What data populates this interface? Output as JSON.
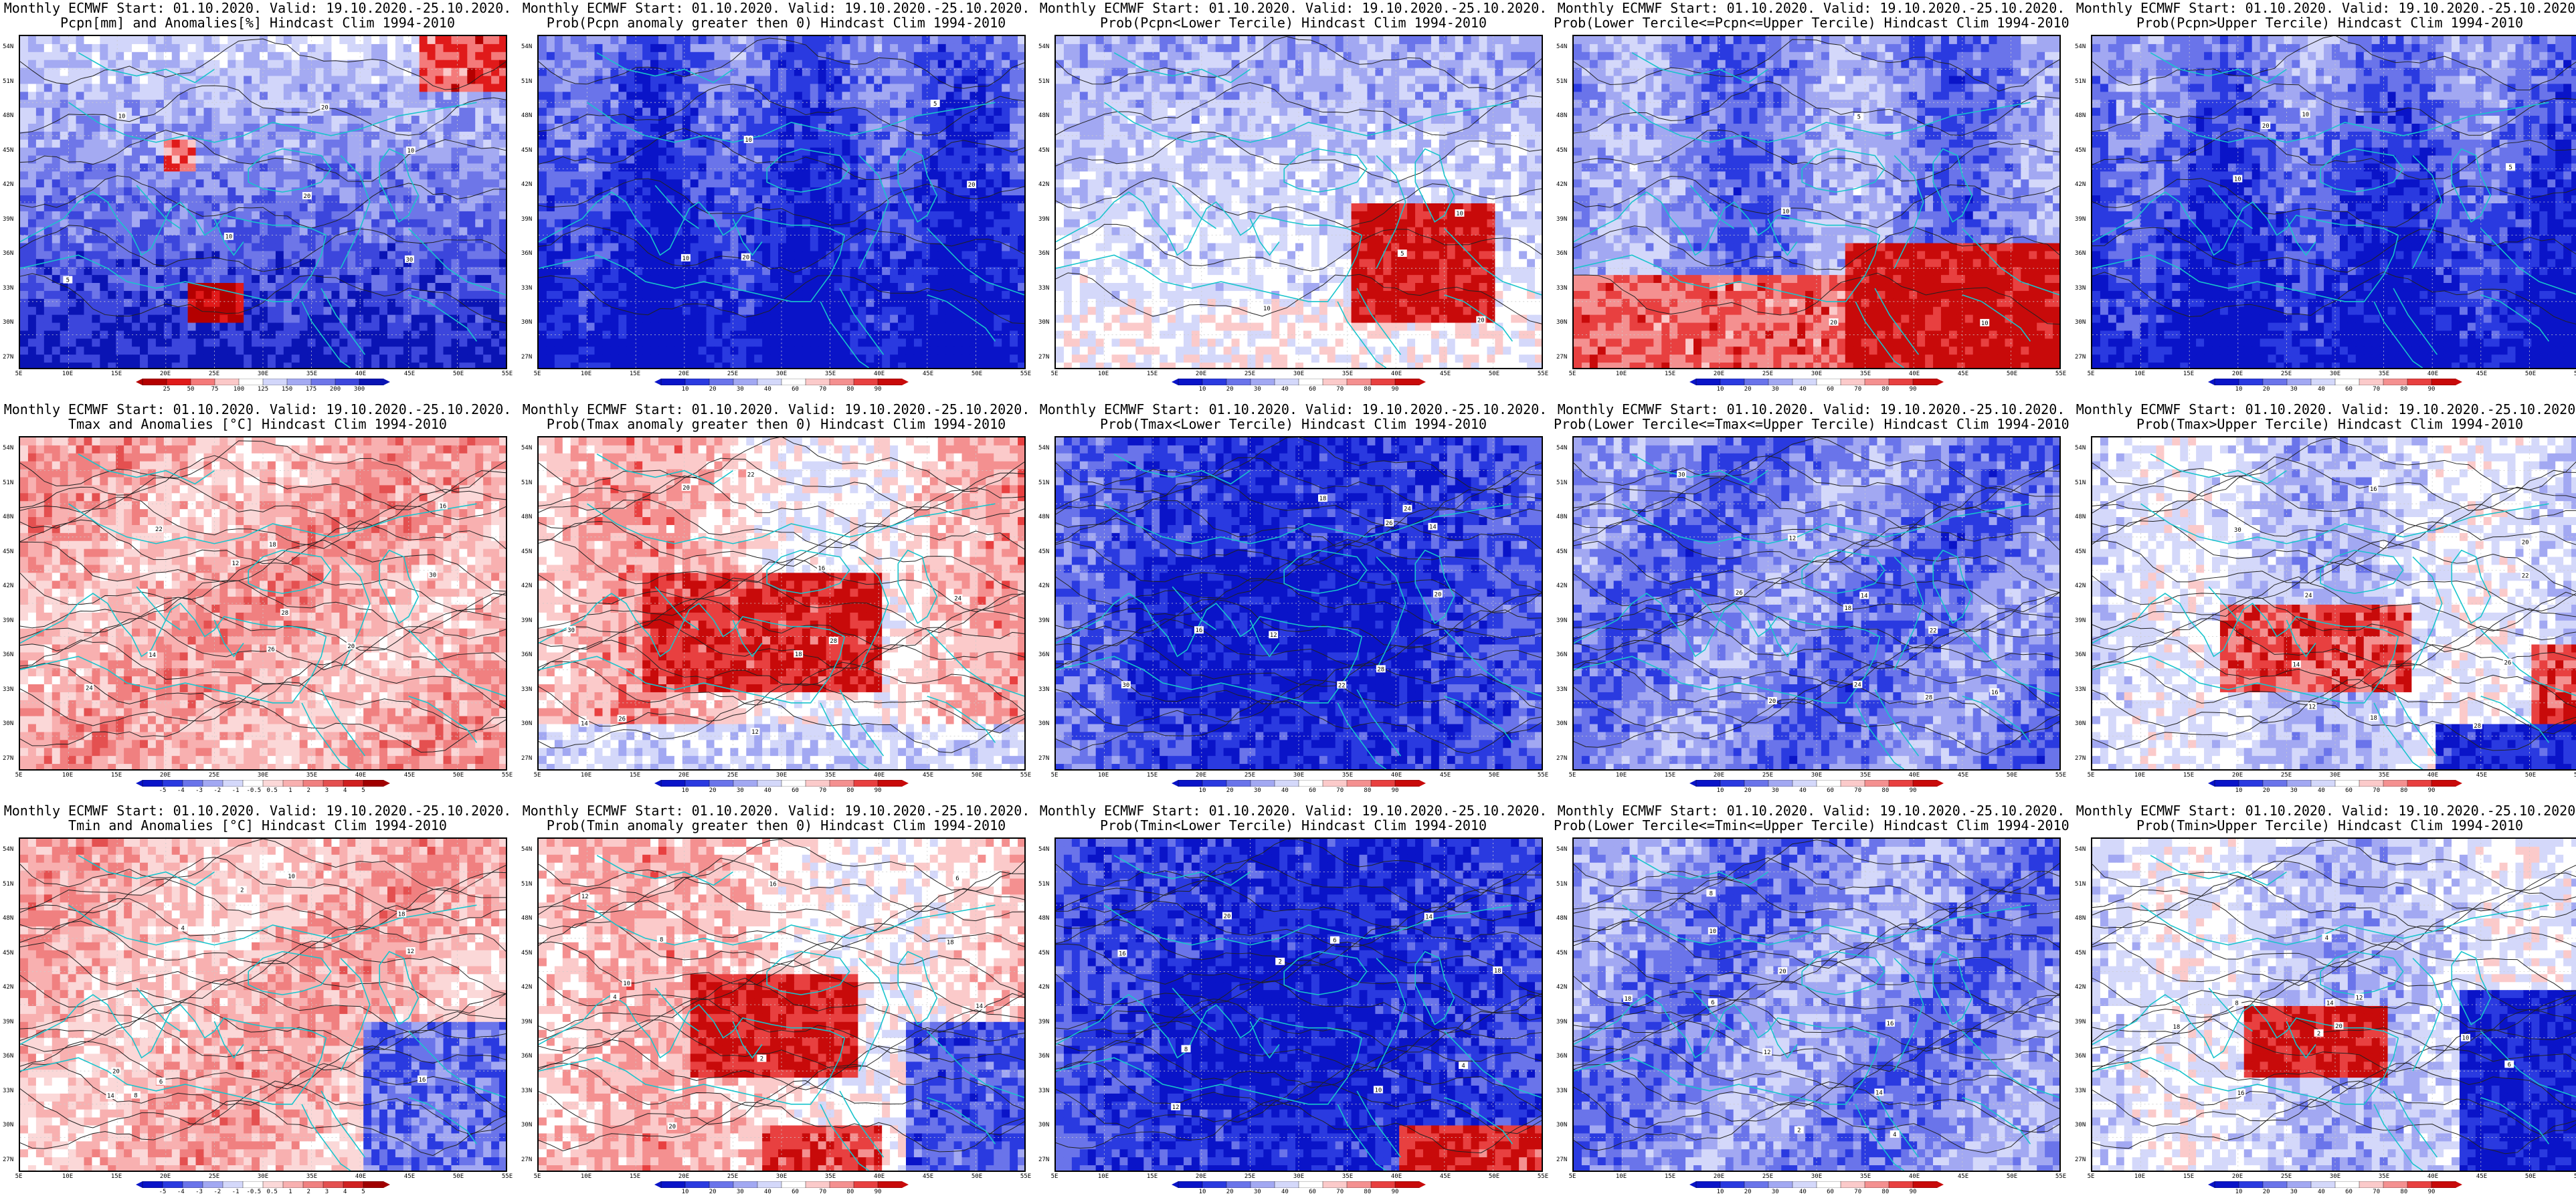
{
  "lat_labels": [
    "54N",
    "51N",
    "48N",
    "45N",
    "42N",
    "39N",
    "36N",
    "33N",
    "30N",
    "27N"
  ],
  "lon_labels": [
    "5E",
    "10E",
    "15E",
    "20E",
    "25E",
    "30E",
    "35E",
    "40E",
    "45E",
    "50E",
    "55E"
  ],
  "rows": [
    {
      "panels": [
        {
          "title1": "Monthly ECMWF Start: 01.10.2020. Valid: 19.10.2020.-25.10.2020.",
          "title2": "Pcpn[mm] and Anomalies[%] Hindcast Clim 1994-2010",
          "scale": "precip_anom",
          "cbar_labels": [
            "25",
            "50",
            "75",
            "100",
            "125",
            "150",
            "175",
            "200",
            "300"
          ],
          "contour_labels": [
            "10",
            "10",
            "20",
            "30",
            "10",
            "20",
            "5"
          ],
          "field_color": "#2a3ad6"
        },
        {
          "title1": "Monthly ECMWF Start: 01.10.2020. Valid: 19.10.2020.-25.10.2020.",
          "title2": "Prob(Pcpn anomaly greater then 0) Hindcast Clim 1994-2010",
          "scale": "prob",
          "cbar_labels": [
            "10",
            "20",
            "30",
            "40",
            "60",
            "70",
            "80",
            "90"
          ],
          "contour_labels": [
            "10",
            "20",
            "10",
            "5",
            "20"
          ],
          "field_color": "#1f2fd0"
        },
        {
          "title1": "Monthly ECMWF Start: 01.10.2020. Valid: 19.10.2020.-25.10.2020.",
          "title2": "Prob(Pcpn<Lower Tercile) Hindcast Clim 1994-2010",
          "scale": "prob",
          "cbar_labels": [
            "10",
            "20",
            "30",
            "40",
            "60",
            "70",
            "80",
            "90"
          ],
          "contour_labels": [
            "10",
            "5",
            "20",
            "10"
          ],
          "field_color": "#1f2fd0"
        },
        {
          "title1": "Monthly ECMWF Start: 01.10.2020. Valid: 19.10.2020.-25.10.2020.",
          "title2": "Prob(Lower Tercile<=Pcpn<=Upper Tercile) Hindcast Clim 1994-2010",
          "scale": "prob",
          "cbar_labels": [
            "10",
            "20",
            "30",
            "40",
            "60",
            "70",
            "80",
            "90"
          ],
          "contour_labels": [
            "10",
            "20",
            "5",
            "10"
          ],
          "field_color": "#1f2fd0"
        },
        {
          "title1": "Monthly ECMWF Start: 01.10.2020. Valid: 19.10.2020.-25.10.2020.",
          "title2": "Prob(Pcpn>Upper Tercile) Hindcast Clim 1994-2010",
          "scale": "prob",
          "cbar_labels": [
            "10",
            "20",
            "30",
            "40",
            "60",
            "70",
            "80",
            "90"
          ],
          "contour_labels": [
            "10",
            "20",
            "10",
            "5"
          ],
          "field_color": "#1f2fd0"
        }
      ]
    },
    {
      "panels": [
        {
          "title1": "Monthly ECMWF Start: 01.10.2020. Valid: 19.10.2020.-25.10.2020.",
          "title2": "Tmax and Anomalies [°C] Hindcast Clim 1994-2010",
          "scale": "temp_anom",
          "cbar_labels": [
            "-5",
            "-4",
            "-3",
            "-2",
            "-1",
            "-0.5",
            "0.5",
            "1",
            "2",
            "3",
            "4",
            "5"
          ],
          "contour_labels": [
            "12",
            "14",
            "16",
            "18",
            "20",
            "22",
            "24",
            "26",
            "28",
            "30"
          ],
          "field_color": "#f08080"
        },
        {
          "title1": "Monthly ECMWF Start: 01.10.2020. Valid: 19.10.2020.-25.10.2020.",
          "title2": "Prob(Tmax anomaly greater then 0) Hindcast Clim 1994-2010",
          "scale": "prob",
          "cbar_labels": [
            "10",
            "20",
            "30",
            "40",
            "60",
            "70",
            "80",
            "90"
          ],
          "contour_labels": [
            "12",
            "14",
            "16",
            "18",
            "20",
            "22",
            "24",
            "26",
            "28",
            "30"
          ],
          "field_color": "#d01010"
        },
        {
          "title1": "Monthly ECMWF Start: 01.10.2020. Valid: 19.10.2020.-25.10.2020.",
          "title2": "Prob(Tmax<Lower Tercile) Hindcast Clim 1994-2010",
          "scale": "prob",
          "cbar_labels": [
            "10",
            "20",
            "30",
            "40",
            "60",
            "70",
            "80",
            "90"
          ],
          "contour_labels": [
            "12",
            "14",
            "16",
            "18",
            "20",
            "22",
            "24",
            "26",
            "28",
            "30"
          ],
          "field_color": "#1f2fd0"
        },
        {
          "title1": "Monthly ECMWF Start: 01.10.2020. Valid: 19.10.2020.-25.10.2020.",
          "title2": "Prob(Lower Tercile<=Tmax<=Upper Tercile) Hindcast Clim 1994-2010",
          "scale": "prob",
          "cbar_labels": [
            "10",
            "20",
            "30",
            "40",
            "60",
            "70",
            "80",
            "90"
          ],
          "contour_labels": [
            "12",
            "14",
            "16",
            "18",
            "20",
            "22",
            "24",
            "26",
            "28",
            "30"
          ],
          "field_color": "#1f2fd0"
        },
        {
          "title1": "Monthly ECMWF Start: 01.10.2020. Valid: 19.10.2020.-25.10.2020.",
          "title2": "Prob(Tmax>Upper Tercile) Hindcast Clim 1994-2010",
          "scale": "prob",
          "cbar_labels": [
            "10",
            "20",
            "30",
            "40",
            "60",
            "70",
            "80",
            "90"
          ],
          "contour_labels": [
            "12",
            "14",
            "16",
            "18",
            "20",
            "22",
            "24",
            "26",
            "28",
            "30"
          ],
          "field_color": "#d01010"
        }
      ]
    },
    {
      "panels": [
        {
          "title1": "Monthly ECMWF Start: 01.10.2020. Valid: 19.10.2020.-25.10.2020.",
          "title2": "Tmin and Anomalies [°C] Hindcast Clim 1994-2010",
          "scale": "temp_anom",
          "cbar_labels": [
            "-5",
            "-4",
            "-3",
            "-2",
            "-1",
            "-0.5",
            "0.5",
            "1",
            "2",
            "3",
            "4",
            "5"
          ],
          "contour_labels": [
            "2",
            "4",
            "6",
            "8",
            "10",
            "12",
            "14",
            "16",
            "18",
            "20"
          ],
          "field_color": "#f08080"
        },
        {
          "title1": "Monthly ECMWF Start: 01.10.2020. Valid: 19.10.2020.-25.10.2020.",
          "title2": "Prob(Tmin anomaly greater then 0) Hindcast Clim 1994-2010",
          "scale": "prob",
          "cbar_labels": [
            "10",
            "20",
            "30",
            "40",
            "60",
            "70",
            "80",
            "90"
          ],
          "contour_labels": [
            "2",
            "4",
            "6",
            "8",
            "10",
            "12",
            "14",
            "16",
            "18",
            "20"
          ],
          "field_color": "#d01010"
        },
        {
          "title1": "Monthly ECMWF Start: 01.10.2020. Valid: 19.10.2020.-25.10.2020.",
          "title2": "Prob(Tmin<Lower Tercile) Hindcast Clim 1994-2010",
          "scale": "prob",
          "cbar_labels": [
            "10",
            "20",
            "30",
            "40",
            "60",
            "70",
            "80",
            "90"
          ],
          "contour_labels": [
            "2",
            "4",
            "6",
            "8",
            "10",
            "12",
            "14",
            "16",
            "18",
            "20"
          ],
          "field_color": "#1f2fd0"
        },
        {
          "title1": "Monthly ECMWF Start: 01.10.2020. Valid: 19.10.2020.-25.10.2020.",
          "title2": "Prob(Lower Tercile<=Tmin<=Upper Tercile) Hindcast Clim 1994-2010",
          "scale": "prob",
          "cbar_labels": [
            "10",
            "20",
            "30",
            "40",
            "60",
            "70",
            "80",
            "90"
          ],
          "contour_labels": [
            "2",
            "4",
            "6",
            "8",
            "10",
            "12",
            "14",
            "16",
            "18",
            "20"
          ],
          "field_color": "#1f2fd0"
        },
        {
          "title1": "Monthly ECMWF Start: 01.10.2020. Valid: 19.10.2020.-25.10.2020.",
          "title2": "Prob(Tmin>Upper Tercile) Hindcast Clim 1994-2010",
          "scale": "prob",
          "cbar_labels": [
            "10",
            "20",
            "30",
            "40",
            "60",
            "70",
            "80",
            "90"
          ],
          "contour_labels": [
            "2",
            "4",
            "6",
            "8",
            "10",
            "12",
            "14",
            "16",
            "18",
            "20"
          ],
          "field_color": "#1f2fd0"
        }
      ]
    }
  ],
  "colors": {
    "precip_anom": [
      "#b40000",
      "#e01a1a",
      "#f47a7a",
      "#fbc8c8",
      "#ffffff",
      "#d2d6fa",
      "#a4aaf2",
      "#6e76e8",
      "#3c46dc",
      "#0a14b4"
    ],
    "prob": [
      "#0a14c8",
      "#2a3ae0",
      "#6a74ea",
      "#a2a8f2",
      "#d4d8fa",
      "#ffffff",
      "#fbcaca",
      "#f49090",
      "#e84040",
      "#c80a0a"
    ],
    "temp_anom": [
      "#0a14c8",
      "#2a3ae0",
      "#6a74ea",
      "#a2a8f2",
      "#d4d8fa",
      "#ffffff",
      "#fbd8d8",
      "#f8b0b0",
      "#f08080",
      "#e45050",
      "#d02020",
      "#a00000"
    ],
    "coast": "#19c4cc",
    "contour": "#222222"
  }
}
